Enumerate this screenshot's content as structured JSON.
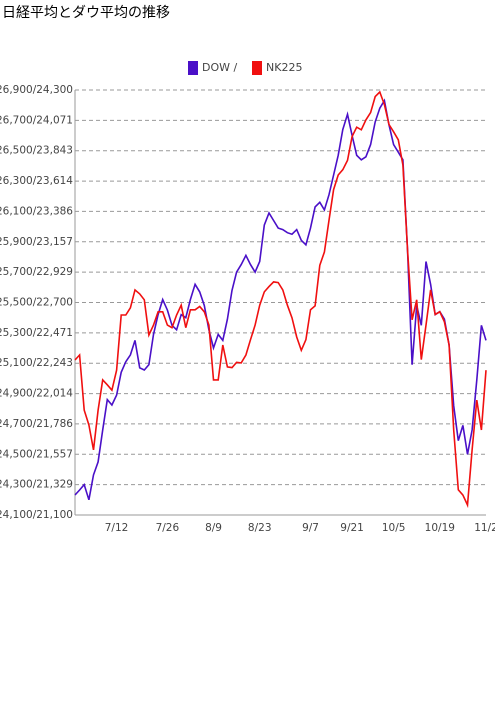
{
  "chart_data": {
    "type": "line",
    "title": "日経平均とダウ平均の推移",
    "categories": [
      null,
      null,
      null,
      null,
      null,
      null,
      null,
      null,
      null,
      "7/12",
      null,
      null,
      null,
      null,
      null,
      null,
      null,
      null,
      null,
      null,
      "7/26",
      null,
      null,
      null,
      null,
      null,
      null,
      null,
      null,
      null,
      "8/9",
      null,
      null,
      null,
      null,
      null,
      null,
      null,
      null,
      null,
      "8/23",
      null,
      null,
      null,
      null,
      null,
      null,
      null,
      null,
      null,
      null,
      "9/7",
      null,
      null,
      null,
      null,
      null,
      null,
      null,
      null,
      "9/21",
      null,
      null,
      null,
      null,
      null,
      null,
      null,
      null,
      "10/5",
      null,
      null,
      null,
      null,
      null,
      null,
      null,
      null,
      null,
      "10/19",
      null,
      null,
      null,
      null,
      null,
      null,
      null,
      null,
      null,
      "11/2"
    ],
    "series": [
      {
        "name": "DOW /",
        "color": "#4a10c8",
        "values": [
          24232,
          24265,
          24300,
          24200,
          24364,
          24450,
          24660,
          24860,
          24825,
          24890,
          25040,
          25110,
          25155,
          25250,
          25070,
          25055,
          25090,
          25290,
          25420,
          25520,
          25450,
          25350,
          25320,
          25420,
          25400,
          25520,
          25620,
          25570,
          25480,
          25320,
          25200,
          25290,
          25250,
          25390,
          25580,
          25700,
          25750,
          25810,
          25750,
          25700,
          25770,
          26010,
          26090,
          26040,
          25990,
          25980,
          25960,
          25950,
          25980,
          25910,
          25880,
          25990,
          26130,
          26160,
          26110,
          26210,
          26340,
          26470,
          26640,
          26740,
          26600,
          26470,
          26440,
          26460,
          26540,
          26690,
          26780,
          26830,
          26670,
          26540,
          26490,
          26440,
          25850,
          25090,
          25480,
          25350,
          25770,
          25620,
          25420,
          25440,
          25390,
          25220,
          24820,
          24590,
          24690,
          24500,
          24660,
          24990,
          25350,
          25250
        ]
      },
      {
        "name": "NK225",
        "color": "#f01010",
        "axis": "y2",
        "values": [
          22267,
          22305,
          21890,
          21778,
          21590,
          21890,
          22117,
          22080,
          22040,
          22190,
          22606,
          22606,
          22660,
          22795,
          22765,
          22720,
          22455,
          22530,
          22630,
          22630,
          22530,
          22510,
          22606,
          22680,
          22510,
          22645,
          22645,
          22670,
          22630,
          22530,
          22117,
          22117,
          22380,
          22215,
          22210,
          22250,
          22245,
          22305,
          22420,
          22530,
          22680,
          22780,
          22820,
          22855,
          22850,
          22795,
          22680,
          22585,
          22440,
          22340,
          22420,
          22645,
          22675,
          22980,
          23080,
          23320,
          23550,
          23660,
          23700,
          23770,
          23950,
          24020,
          24000,
          24075,
          24130,
          24250,
          24285,
          24190,
          24040,
          23985,
          23925,
          23735,
          23100,
          22570,
          22720,
          22270,
          22530,
          22795,
          22610,
          22630,
          22555,
          22380,
          21740,
          21290,
          21250,
          21175,
          21590,
          21965,
          21740,
          22190
        ]
      }
    ],
    "ylim": [
      24100,
      26900
    ],
    "yticks": [
      {
        "value": 24100,
        "label": "24,100/21,100"
      },
      {
        "value": 24300,
        "label": "24,300/21,329"
      },
      {
        "value": 24500,
        "label": "24,500/21,557"
      },
      {
        "value": 24700,
        "label": "24,700/21,786"
      },
      {
        "value": 24900,
        "label": "24,900/22,014"
      },
      {
        "value": 25100,
        "label": "25,100/22,243"
      },
      {
        "value": 25300,
        "label": "25,300/22,471"
      },
      {
        "value": 25500,
        "label": "25,500/22,700"
      },
      {
        "value": 25700,
        "label": "25,700/22,929"
      },
      {
        "value": 25900,
        "label": "25,900/23,157"
      },
      {
        "value": 26100,
        "label": "26,100/23,386"
      },
      {
        "value": 26300,
        "label": "26,300/23,614"
      },
      {
        "value": 26500,
        "label": "26,500/23,843"
      },
      {
        "value": 26700,
        "label": "26,700/24,071"
      },
      {
        "value": 26900,
        "label": "26,900/24,300"
      }
    ],
    "y2lim": [
      21100,
      24300
    ],
    "grid": true,
    "legend": "top"
  }
}
